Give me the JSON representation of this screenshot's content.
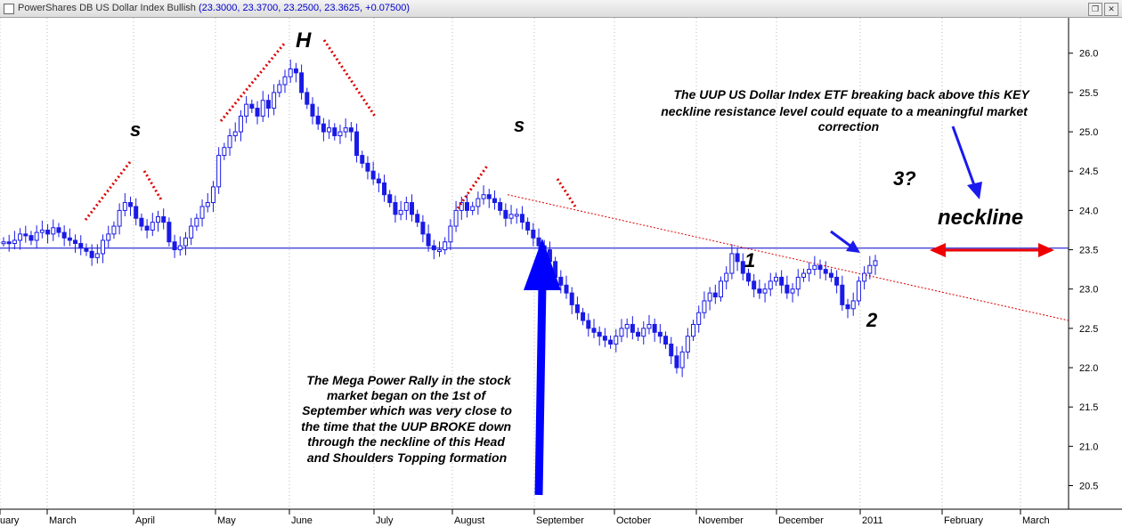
{
  "window": {
    "title": "PowerShares DB US Dollar Index Bullish",
    "ohlc": "(23.3000, 23.3700, 23.2500, 23.3625, +0.07500)",
    "checkbox_icon": "checkbox-icon",
    "restore_icon": "restore-icon",
    "close_icon": "close-icon"
  },
  "colors": {
    "candle": "#1a1ae6",
    "neckline": "#0000cc",
    "trendline": "#dd0000",
    "arrow_blue": "#0000ff",
    "arrow_red": "#ee0000"
  },
  "chart_data": {
    "type": "candlestick",
    "y_ticks": [
      "26.0",
      "25.5",
      "25.0",
      "24.5",
      "24.0",
      "23.5",
      "23.0",
      "22.5",
      "22.0",
      "21.5",
      "21.0",
      "20.5"
    ],
    "ylim": [
      20.2,
      26.45
    ],
    "x_labels": [
      "uary",
      "March",
      "April",
      "May",
      "June",
      "July",
      "August",
      "September",
      "October",
      "November",
      "December",
      "2011",
      "February",
      "March"
    ],
    "grid": "vertical dotted",
    "neckline_level": 23.52,
    "trendline": [
      {
        "x": 570,
        "y": 24.2
      },
      {
        "x": 1200,
        "y": 22.6
      }
    ],
    "series": [
      {
        "values": [
          23.6,
          23.58,
          23.62,
          23.7,
          23.68,
          23.62,
          23.72,
          23.75,
          23.7,
          23.78,
          23.72,
          23.65,
          23.62,
          23.58,
          23.52,
          23.48,
          23.4,
          23.45,
          23.62,
          23.7,
          23.8,
          24.0,
          24.1,
          24.05,
          23.9,
          23.8,
          23.75,
          23.85,
          23.92,
          23.85,
          23.6,
          23.5,
          23.55,
          23.65,
          23.8,
          23.9,
          24.05,
          24.1,
          24.3,
          24.7,
          24.8,
          24.95,
          25.0,
          25.2,
          25.35,
          25.3,
          25.2,
          25.4,
          25.3,
          25.5,
          25.6,
          25.7,
          25.8,
          25.75,
          25.5,
          25.35,
          25.2,
          25.1,
          25.0,
          25.05,
          24.95,
          25.0,
          25.05,
          25.0,
          24.7,
          24.6,
          24.5,
          24.4,
          24.35,
          24.2,
          24.1,
          23.95,
          24.0,
          24.1,
          23.95,
          23.85,
          23.7,
          23.55,
          23.5,
          23.5,
          23.6,
          23.8,
          24.0,
          24.1,
          24.0,
          24.05,
          24.15,
          24.2,
          24.15,
          24.1,
          24.0,
          23.9,
          23.95,
          23.95,
          23.85,
          23.75,
          23.65,
          23.55,
          23.5,
          23.35,
          23.15,
          23.05,
          22.95,
          22.8,
          22.7,
          22.6,
          22.5,
          22.45,
          22.4,
          22.35,
          22.3,
          22.4,
          22.5,
          22.55,
          22.45,
          22.4,
          22.5,
          22.55,
          22.45,
          22.4,
          22.3,
          22.15,
          22.0,
          22.2,
          22.4,
          22.55,
          22.7,
          22.85,
          22.95,
          22.9,
          23.1,
          23.2,
          23.45,
          23.35,
          23.2,
          23.1,
          23.0,
          22.95,
          23.0,
          23.1,
          23.15,
          23.05,
          22.95,
          23.0,
          23.15,
          23.2,
          23.25,
          23.3,
          23.25,
          23.2,
          23.15,
          23.05,
          22.8,
          22.75,
          22.85,
          23.1,
          23.2,
          23.3,
          23.36
        ]
      }
    ]
  },
  "annotations": {
    "left_shoulder": "s",
    "head": "H",
    "right_shoulder": "s",
    "point_1": "1",
    "point_2": "2",
    "point_3": "3?",
    "neckline": "neckline",
    "note_top": [
      "The UUP US Dollar Index ETF breaking back above this KEY",
      "neckline resistance level could equate to a meaningful market",
      "correction"
    ],
    "note_bottom": [
      "The Mega Power Rally in the stock",
      "market began on the 1st of",
      "September which was very close to",
      "the time that the UUP BROKE down",
      "through the neckline of this Head",
      "and Shoulders Topping formation"
    ]
  }
}
